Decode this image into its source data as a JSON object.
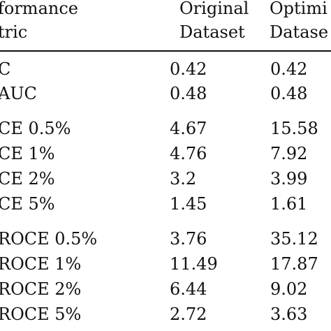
{
  "table": {
    "headers": {
      "metric_line1": "formance",
      "metric_line2": "tric",
      "col2_line1": "Original",
      "col2_line2": "Dataset",
      "col3_line1": "Optimi",
      "col3_line2": "Datase"
    },
    "rows": [
      {
        "metric": "C",
        "original": "0.42",
        "optimized": "0.42"
      },
      {
        "metric": "AUC",
        "original": "0.48",
        "optimized": "0.48"
      },
      {
        "metric": "CE 0.5%",
        "original": "4.67",
        "optimized": "15.58"
      },
      {
        "metric": "CE 1%",
        "original": "4.76",
        "optimized": "7.92"
      },
      {
        "metric": "CE 2%",
        "original": "3.2",
        "optimized": "3.99"
      },
      {
        "metric": "CE 5%",
        "original": "1.45",
        "optimized": "1.61"
      },
      {
        "metric": "ROCE 0.5%",
        "original": "3.76",
        "optimized": "35.12"
      },
      {
        "metric": "ROCE 1%",
        "original": "11.49",
        "optimized": "17.87"
      },
      {
        "metric": "ROCE 2%",
        "original": "6.44",
        "optimized": "9.02"
      },
      {
        "metric": "ROCE 5%",
        "original": "2.72",
        "optimized": "3.63"
      }
    ]
  }
}
